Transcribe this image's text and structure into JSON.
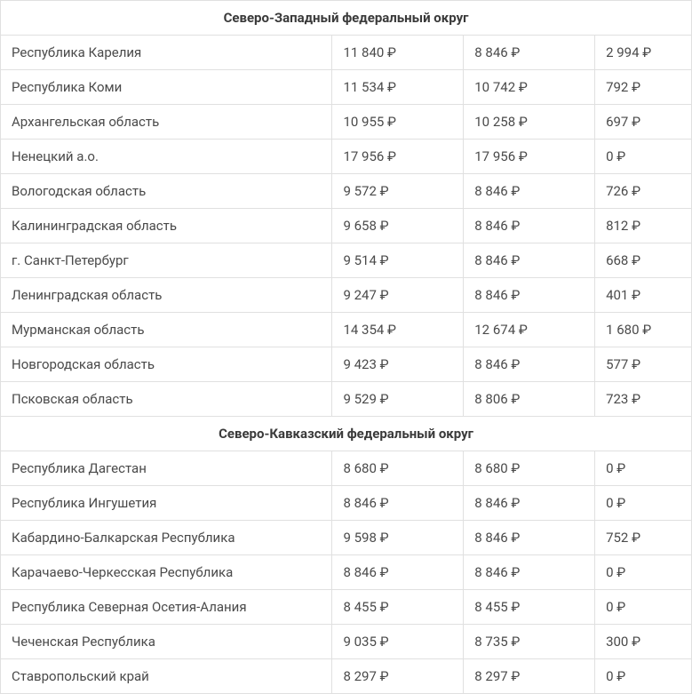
{
  "currency": "₽",
  "sections": [
    {
      "title": "Северо-Западный федеральный округ",
      "rows": [
        {
          "region": "Республика Карелия",
          "col1": "11 840 ₽",
          "col2": "8 846 ₽",
          "col3": "2 994 ₽"
        },
        {
          "region": "Республика Коми",
          "col1": "11 534 ₽",
          "col2": "10 742 ₽",
          "col3": "792 ₽"
        },
        {
          "region": "Архангельская область",
          "col1": "10 955 ₽",
          "col2": "10 258 ₽",
          "col3": "697 ₽"
        },
        {
          "region": "Ненецкий а.о.",
          "col1": "17 956 ₽",
          "col2": "17 956 ₽",
          "col3": "0 ₽"
        },
        {
          "region": "Вологодская область",
          "col1": "9 572 ₽",
          "col2": "8 846 ₽",
          "col3": "726 ₽"
        },
        {
          "region": "Калининградская область",
          "col1": "9 658 ₽",
          "col2": "8 846 ₽",
          "col3": "812 ₽"
        },
        {
          "region": "г. Санкт-Петербург",
          "col1": "9 514 ₽",
          "col2": "8 846 ₽",
          "col3": "668 ₽"
        },
        {
          "region": "Ленинградская область",
          "col1": "9 247 ₽",
          "col2": "8 846 ₽",
          "col3": "401 ₽"
        },
        {
          "region": "Мурманская область",
          "col1": "14 354 ₽",
          "col2": "12 674 ₽",
          "col3": "1 680 ₽"
        },
        {
          "region": "Новгородская область",
          "col1": "9 423 ₽",
          "col2": "8 846 ₽",
          "col3": "577 ₽"
        },
        {
          "region": "Псковская область",
          "col1": "9 529 ₽",
          "col2": "8 806 ₽",
          "col3": "723 ₽"
        }
      ]
    },
    {
      "title": "Северо-Кавказский федеральный округ",
      "rows": [
        {
          "region": "Республика Дагестан",
          "col1": "8 680 ₽",
          "col2": "8 680 ₽",
          "col3": "0 ₽"
        },
        {
          "region": "Республика Ингушетия",
          "col1": "8 846 ₽",
          "col2": "8 846 ₽",
          "col3": "0 ₽"
        },
        {
          "region": "Кабардино-Балкарская Республика",
          "col1": "9 598 ₽",
          "col2": "8 846 ₽",
          "col3": "752 ₽"
        },
        {
          "region": "Карачаево-Черкесская Республика",
          "col1": "8 846 ₽",
          "col2": "8 846 ₽",
          "col3": "0 ₽"
        },
        {
          "region": "Республика Северная Осетия-Алания",
          "col1": "8 455 ₽",
          "col2": "8 455 ₽",
          "col3": "0 ₽"
        },
        {
          "region": "Чеченская Республика",
          "col1": "9 035 ₽",
          "col2": "8 735 ₽",
          "col3": "300 ₽"
        },
        {
          "region": "Ставропольский край",
          "col1": "8 297 ₽",
          "col2": "8 297 ₽",
          "col3": "0 ₽"
        }
      ]
    }
  ],
  "styling": {
    "border_color": "#e0e0e0",
    "text_color": "#4a4a4a",
    "header_text_color": "#3a3a3a",
    "background_color": "#ffffff",
    "font_size": 15,
    "header_font_weight": 700,
    "column_widths_pct": [
      48,
      19,
      19,
      14
    ]
  }
}
